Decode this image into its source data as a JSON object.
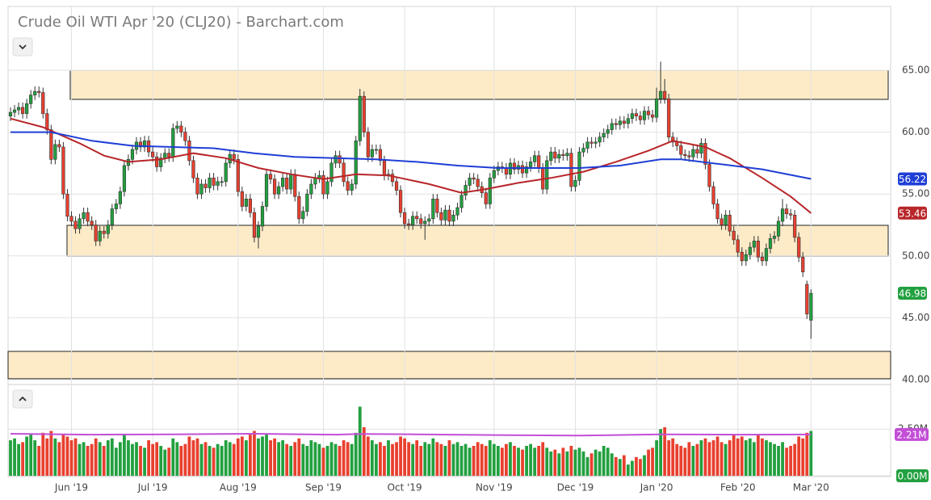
{
  "chart_data": {
    "type": "candlestick",
    "title": "Crude Oil WTI Apr '20 (CLJ20) - Barchart.com",
    "up_color": "#22a03f",
    "down_color": "#e8402f",
    "grid": true,
    "xlim": [
      -0.6,
      216.6
    ],
    "xticks": [
      {
        "value": 15,
        "label": "Jun '19"
      },
      {
        "value": 35,
        "label": "Jul '19"
      },
      {
        "value": 56,
        "label": "Aug '19"
      },
      {
        "value": 77,
        "label": "Sep '19"
      },
      {
        "value": 97,
        "label": "Oct '19"
      },
      {
        "value": 119,
        "label": "Nov '19"
      },
      {
        "value": 139,
        "label": "Dec '19"
      },
      {
        "value": 159,
        "label": "Jan '20"
      },
      {
        "value": 179,
        "label": "Feb '20"
      },
      {
        "value": 197,
        "label": "Mar '20"
      }
    ],
    "ylim": [
      39.67,
      70.16
    ],
    "yticks": [
      {
        "value": 40,
        "label": "40.00"
      },
      {
        "value": 45,
        "label": "45.00"
      },
      {
        "value": 50,
        "label": "50.00"
      },
      {
        "value": 55,
        "label": "55.00"
      },
      {
        "value": 60,
        "label": "60.00"
      },
      {
        "value": 65,
        "label": "65.00"
      }
    ],
    "zone_color": "#fdebc8",
    "zones": [
      {
        "x": [
          14.7,
          216.0
        ],
        "y": [
          62.65,
          65.0
        ]
      },
      {
        "x": [
          13.9,
          216.0
        ],
        "y": [
          49.99,
          52.47
        ]
      },
      {
        "x": [
          -0.6,
          216.6
        ],
        "y": [
          40.07,
          42.28
        ]
      }
    ],
    "open": [
      61.3,
      61.6,
      61.8,
      62.0,
      61.5,
      62.3,
      63.0,
      63.3,
      63.2,
      61.5,
      60.2,
      57.8,
      59.0,
      58.8,
      55.0,
      53.2,
      52.8,
      52.2,
      53.0,
      53.5,
      52.8,
      52.5,
      51.2,
      52.0,
      51.8,
      52.5,
      53.8,
      54.2,
      55.2,
      57.3,
      57.8,
      58.6,
      59.2,
      58.8,
      59.3,
      58.4,
      58.0,
      57.2,
      57.9,
      58.3,
      58.0,
      60.3,
      60.5,
      60.0,
      59.3,
      57.7,
      56.3,
      55.0,
      55.8,
      55.5,
      56.3,
      55.7,
      56.0,
      56.0,
      57.5,
      58.2,
      57.8,
      55.2,
      54.0,
      54.6,
      53.5,
      51.5,
      52.4,
      54.0,
      56.6,
      56.2,
      55.0,
      55.6,
      56.3,
      55.4,
      56.6,
      54.8,
      53.0,
      53.6,
      55.0,
      55.8,
      56.3,
      56.5,
      55.0,
      56.0,
      57.5,
      58.1,
      57.5,
      56.0,
      55.3,
      55.8,
      59.3,
      62.9,
      60.0,
      58.0,
      58.6,
      58.6,
      57.7,
      56.5,
      56.6,
      56.0,
      55.3,
      53.5,
      52.6,
      52.5,
      53.2,
      53.0,
      52.6,
      52.8,
      53.0,
      54.6,
      53.5,
      52.9,
      53.7,
      52.8,
      53.3,
      53.9,
      54.9,
      55.7,
      56.3,
      56.2,
      55.6,
      55.1,
      54.2,
      56.3,
      56.9,
      57.2,
      57.1,
      56.6,
      57.5,
      57.0,
      57.3,
      56.7,
      57.2,
      57.6,
      58.1,
      57.1,
      55.4,
      57.7,
      58.4,
      57.9,
      58.2,
      58.1,
      58.3,
      55.6,
      56.1,
      58.4,
      58.7,
      59.2,
      59.1,
      59.2,
      59.6,
      59.9,
      60.2,
      60.7,
      60.6,
      60.9,
      60.7,
      61.1,
      61.5,
      61.3,
      61.0,
      61.7,
      61.4,
      61.2,
      62.7,
      63.3,
      62.7,
      59.6,
      59.2,
      58.9,
      58.2,
      58.1,
      58.0,
      58.6,
      58.3,
      59.1,
      57.4,
      55.6,
      54.2,
      53.0,
      52.5,
      53.3,
      52.0,
      51.3,
      50.3,
      49.6,
      50.1,
      50.7,
      51.2,
      49.9,
      49.6,
      50.6,
      51.4,
      51.6,
      52.8,
      53.8,
      53.4,
      53.3,
      51.5,
      49.9,
      47.7,
      44.8
    ],
    "high": [
      62.0,
      62.2,
      62.4,
      62.4,
      62.7,
      63.4,
      63.7,
      63.7,
      63.6,
      61.9,
      60.6,
      59.4,
      59.4,
      59.2,
      55.4,
      53.6,
      53.2,
      53.4,
      53.9,
      53.9,
      53.2,
      52.9,
      52.4,
      52.4,
      52.9,
      54.2,
      54.6,
      55.6,
      57.7,
      58.2,
      59.0,
      59.6,
      59.6,
      59.7,
      59.7,
      58.8,
      58.4,
      58.3,
      58.7,
      58.7,
      60.7,
      60.9,
      60.9,
      60.4,
      59.7,
      58.1,
      56.7,
      56.2,
      56.2,
      56.7,
      56.7,
      56.4,
      56.4,
      57.9,
      58.6,
      58.6,
      58.2,
      55.6,
      55.0,
      55.0,
      53.9,
      52.8,
      54.4,
      57.0,
      57.0,
      56.6,
      56.0,
      56.7,
      56.7,
      57.0,
      57.0,
      55.2,
      54.0,
      55.4,
      56.2,
      56.7,
      56.9,
      56.9,
      56.4,
      57.9,
      58.5,
      58.5,
      57.9,
      56.4,
      56.2,
      59.7,
      63.5,
      63.3,
      60.4,
      59.0,
      59.0,
      59.0,
      58.1,
      57.0,
      57.0,
      56.4,
      55.7,
      53.9,
      53.0,
      53.6,
      53.6,
      53.4,
      53.2,
      53.4,
      55.0,
      55.0,
      53.9,
      54.1,
      54.1,
      53.7,
      54.3,
      55.3,
      56.1,
      56.7,
      56.7,
      56.6,
      56.0,
      55.5,
      56.7,
      57.3,
      57.6,
      57.6,
      57.5,
      57.9,
      57.9,
      57.7,
      57.7,
      57.6,
      58.0,
      58.5,
      58.5,
      57.5,
      58.1,
      58.8,
      58.8,
      58.6,
      58.6,
      58.7,
      58.7,
      56.5,
      58.8,
      59.1,
      59.6,
      59.6,
      59.6,
      60.0,
      60.3,
      60.6,
      61.1,
      61.1,
      61.3,
      61.3,
      61.5,
      61.9,
      61.9,
      61.7,
      62.1,
      62.1,
      61.8,
      63.6,
      65.7,
      64.3,
      63.1,
      60.0,
      59.6,
      59.3,
      58.6,
      58.5,
      59.0,
      59.0,
      59.5,
      59.5,
      57.8,
      56.0,
      54.6,
      53.4,
      53.7,
      53.7,
      52.4,
      51.7,
      50.7,
      50.5,
      51.1,
      51.6,
      51.6,
      50.3,
      51.0,
      51.8,
      52.0,
      53.2,
      54.6,
      54.2,
      53.8,
      53.7,
      51.9,
      50.3,
      48.0,
      47.3
    ],
    "low": [
      60.9,
      61.2,
      61.4,
      61.1,
      61.1,
      61.9,
      62.6,
      62.8,
      61.1,
      59.8,
      57.4,
      57.4,
      58.4,
      54.6,
      52.8,
      52.4,
      51.8,
      51.8,
      52.6,
      52.4,
      52.1,
      50.8,
      50.8,
      51.4,
      51.4,
      52.1,
      53.4,
      53.8,
      54.8,
      56.9,
      57.4,
      58.2,
      58.4,
      58.4,
      58.0,
      57.6,
      56.8,
      56.8,
      57.5,
      57.6,
      57.6,
      59.9,
      59.6,
      58.9,
      57.3,
      55.9,
      54.6,
      54.6,
      55.1,
      55.1,
      55.3,
      55.3,
      55.6,
      55.6,
      57.1,
      57.4,
      54.8,
      53.6,
      53.6,
      53.1,
      51.1,
      50.6,
      52.0,
      53.6,
      55.8,
      54.6,
      54.6,
      55.2,
      55.0,
      55.0,
      54.4,
      52.6,
      52.6,
      53.2,
      54.6,
      55.4,
      55.9,
      54.6,
      54.6,
      55.6,
      57.1,
      57.1,
      55.6,
      54.9,
      54.9,
      55.4,
      58.9,
      59.6,
      57.6,
      57.6,
      58.2,
      57.3,
      56.1,
      56.1,
      55.6,
      54.9,
      53.1,
      52.2,
      52.1,
      52.1,
      52.6,
      52.2,
      51.3,
      52.4,
      52.6,
      53.1,
      52.5,
      52.5,
      52.4,
      52.4,
      52.9,
      53.5,
      54.5,
      55.3,
      55.8,
      55.2,
      54.7,
      53.8,
      53.8,
      55.9,
      56.5,
      56.7,
      56.2,
      56.2,
      56.6,
      56.6,
      56.3,
      56.3,
      56.8,
      57.2,
      56.7,
      55.0,
      55.0,
      57.3,
      57.5,
      57.5,
      57.7,
      57.7,
      55.2,
      55.2,
      55.7,
      58.0,
      58.3,
      58.7,
      58.7,
      58.8,
      59.2,
      59.5,
      59.8,
      60.2,
      60.2,
      60.3,
      60.3,
      60.7,
      60.9,
      60.6,
      60.6,
      61.0,
      60.8,
      60.8,
      62.3,
      62.3,
      59.2,
      58.8,
      58.5,
      57.8,
      57.7,
      57.6,
      57.6,
      57.9,
      57.9,
      57.0,
      55.2,
      53.8,
      52.6,
      52.1,
      52.1,
      51.6,
      50.9,
      49.9,
      49.2,
      49.2,
      49.7,
      50.3,
      49.5,
      49.2,
      49.2,
      50.2,
      51.0,
      51.2,
      52.4,
      53.0,
      52.9,
      51.1,
      49.5,
      48.3,
      44.9,
      43.3
    ],
    "close": [
      61.6,
      61.8,
      62.0,
      61.5,
      62.3,
      63.0,
      63.3,
      63.2,
      61.5,
      60.2,
      57.8,
      59.0,
      58.8,
      55.0,
      53.2,
      52.8,
      52.2,
      53.0,
      53.5,
      52.8,
      52.5,
      51.2,
      52.0,
      51.8,
      52.5,
      53.8,
      54.2,
      55.2,
      57.3,
      57.8,
      58.6,
      59.2,
      58.8,
      59.3,
      58.4,
      58.0,
      57.2,
      57.9,
      58.3,
      58.0,
      60.3,
      60.5,
      60.0,
      59.3,
      57.7,
      56.3,
      55.0,
      55.8,
      55.5,
      56.3,
      55.7,
      56.0,
      56.0,
      57.5,
      58.2,
      57.8,
      55.2,
      54.0,
      54.6,
      53.5,
      51.5,
      52.4,
      54.0,
      56.6,
      56.2,
      55.0,
      55.6,
      56.3,
      55.4,
      56.6,
      54.8,
      53.0,
      53.6,
      55.0,
      55.8,
      56.3,
      56.5,
      55.0,
      56.0,
      57.5,
      58.1,
      57.5,
      56.0,
      55.3,
      55.8,
      59.3,
      62.9,
      60.0,
      58.0,
      58.6,
      58.6,
      57.7,
      56.5,
      56.6,
      56.0,
      55.3,
      53.5,
      52.6,
      52.5,
      53.2,
      53.0,
      52.6,
      52.8,
      53.0,
      54.6,
      53.5,
      52.9,
      53.7,
      52.8,
      53.3,
      53.9,
      54.9,
      55.7,
      56.3,
      56.2,
      55.6,
      55.1,
      54.2,
      56.3,
      56.9,
      57.2,
      57.1,
      56.6,
      57.5,
      57.0,
      57.3,
      56.7,
      57.2,
      57.6,
      58.1,
      57.1,
      55.4,
      57.7,
      58.4,
      57.9,
      58.2,
      58.1,
      58.3,
      55.6,
      56.1,
      58.4,
      58.7,
      59.2,
      59.1,
      59.2,
      59.6,
      59.9,
      60.2,
      60.7,
      60.6,
      60.9,
      60.7,
      61.1,
      61.5,
      61.3,
      61.0,
      61.7,
      61.4,
      61.2,
      62.7,
      63.3,
      62.7,
      59.6,
      59.2,
      58.9,
      58.2,
      58.1,
      58.0,
      58.6,
      58.3,
      59.1,
      57.4,
      55.6,
      54.2,
      53.0,
      52.5,
      53.3,
      52.0,
      51.3,
      50.3,
      49.6,
      50.1,
      50.7,
      51.2,
      49.9,
      49.6,
      50.6,
      51.4,
      51.6,
      52.8,
      53.8,
      53.4,
      53.3,
      51.5,
      49.9,
      48.7,
      45.3,
      46.98
    ],
    "moving_averages": [
      {
        "color": "#b8262a",
        "x": [
          0,
          8,
          17,
          23,
          29,
          37,
          45,
          53,
          61,
          69,
          77,
          85,
          93,
          103,
          111,
          117,
          125,
          133,
          141,
          149,
          157,
          163,
          171,
          177,
          185,
          192,
          197
        ],
        "values": [
          61.1,
          60.4,
          59.1,
          58.1,
          57.6,
          57.8,
          58.3,
          57.9,
          57.1,
          56.6,
          56.2,
          56.6,
          56.5,
          55.8,
          55.1,
          55.4,
          55.9,
          56.3,
          56.8,
          57.6,
          58.5,
          59.3,
          58.8,
          57.9,
          56.3,
          54.8,
          53.46
        ]
      },
      {
        "color": "#1f3fd6",
        "x": [
          0,
          10,
          20,
          30,
          40,
          50,
          60,
          70,
          80,
          90,
          100,
          110,
          120,
          130,
          140,
          150,
          160,
          165,
          175,
          185,
          197
        ],
        "values": [
          60.0,
          60.0,
          59.3,
          58.9,
          58.8,
          58.7,
          58.3,
          58.0,
          57.9,
          57.8,
          57.6,
          57.3,
          57.1,
          57.1,
          57.1,
          57.3,
          57.8,
          57.8,
          57.4,
          57.0,
          56.22
        ]
      }
    ],
    "volume": {
      "ylim": [
        0,
        4.8
      ],
      "yticks": [
        {
          "value": 0,
          "label": "0.00M"
        },
        {
          "value": 2.5,
          "label": "2.50M"
        }
      ],
      "values": [
        1.9,
        2.0,
        1.7,
        1.8,
        2.1,
        2.2,
        1.9,
        1.6,
        2.3,
        2.0,
        2.4,
        2.0,
        1.8,
        2.2,
        2.1,
        1.9,
        2.0,
        1.7,
        1.8,
        1.6,
        1.7,
        2.0,
        1.8,
        1.6,
        1.9,
        2.0,
        1.5,
        1.8,
        2.2,
        1.9,
        1.7,
        1.8,
        1.6,
        1.5,
        1.9,
        1.7,
        1.8,
        1.6,
        1.4,
        1.5,
        2.0,
        1.8,
        1.6,
        1.7,
        2.1,
        1.9,
        2.0,
        1.7,
        1.8,
        1.6,
        1.5,
        1.7,
        1.6,
        1.9,
        1.8,
        1.7,
        2.0,
        2.1,
        1.9,
        2.2,
        2.4,
        2.0,
        2.1,
        2.2,
        1.9,
        2.0,
        1.8,
        1.9,
        1.7,
        1.6,
        1.8,
        2.0,
        1.7,
        1.6,
        1.9,
        1.8,
        1.7,
        1.5,
        1.6,
        1.8,
        1.7,
        1.6,
        1.9,
        1.8,
        1.7,
        2.3,
        3.7,
        2.6,
        2.1,
        1.9,
        1.7,
        1.8,
        1.6,
        1.9,
        1.7,
        1.8,
        2.1,
        2.0,
        1.8,
        1.7,
        1.9,
        1.6,
        1.8,
        1.7,
        2.0,
        1.8,
        1.7,
        1.6,
        1.9,
        1.7,
        1.8,
        1.6,
        1.7,
        1.5,
        1.6,
        1.8,
        1.7,
        1.6,
        1.9,
        1.7,
        1.6,
        1.5,
        1.7,
        1.8,
        1.6,
        1.5,
        1.4,
        1.6,
        1.7,
        1.5,
        1.6,
        1.8,
        1.5,
        1.3,
        1.4,
        1.2,
        1.5,
        1.3,
        1.6,
        1.4,
        1.5,
        1.3,
        1.0,
        1.2,
        1.4,
        1.3,
        1.6,
        1.5,
        1.2,
        1.0,
        0.9,
        1.1,
        0.6,
        0.8,
        1.0,
        0.9,
        1.1,
        1.4,
        1.5,
        1.9,
        2.5,
        2.6,
        1.9,
        2.0,
        1.7,
        1.6,
        1.5,
        1.8,
        1.6,
        1.7,
        1.9,
        2.0,
        1.8,
        1.9,
        2.1,
        1.8,
        1.7,
        1.9,
        2.2,
        2.0,
        2.1,
        1.9,
        2.0,
        1.8,
        2.2,
        2.0,
        1.9,
        1.8,
        1.7,
        1.6,
        1.8,
        1.5,
        1.6,
        1.7,
        2.1,
        2.0,
        2.3,
        2.4
      ],
      "average": {
        "color": "#c24fd6",
        "x": [
          0,
          20,
          40,
          60,
          80,
          86,
          100,
          120,
          140,
          160,
          180,
          197
        ],
        "values": [
          2.25,
          2.2,
          2.22,
          2.25,
          2.2,
          2.24,
          2.22,
          2.18,
          2.15,
          2.22,
          2.2,
          2.21
        ],
        "last_label": "2.21M"
      }
    }
  }
}
